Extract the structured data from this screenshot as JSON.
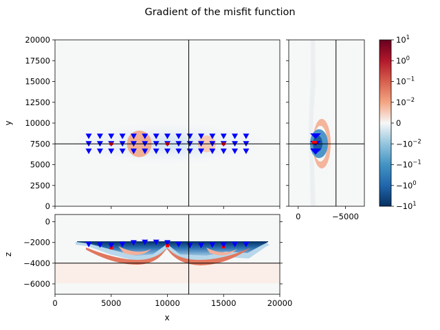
{
  "figure": {
    "title": "Gradient of the misfit function"
  },
  "chart_data": [
    {
      "panel": "xy-slice",
      "type": "heatmap",
      "xlim": [
        0,
        20000
      ],
      "ylim": [
        0,
        20000
      ],
      "ylabel": "y",
      "yticks": [
        0,
        2500,
        5000,
        7500,
        10000,
        12500,
        15000,
        17500,
        20000
      ],
      "ytick_labels": [
        "0",
        "2500",
        "5000",
        "7500",
        "10000",
        "12500",
        "15000",
        "17500",
        "20000"
      ],
      "crosshair": {
        "x": 11900,
        "y": 7500
      },
      "receiver_rows_y": [
        8400,
        7500,
        6600
      ],
      "receiver_x": [
        3000,
        4000,
        5000,
        6000,
        7000,
        8000,
        9000,
        10000,
        11000,
        12000,
        13000,
        14000,
        15000,
        16000,
        17000
      ],
      "sources": [
        {
          "x": 5000,
          "y": 7500
        },
        {
          "x": 10000,
          "y": 7500
        },
        {
          "x": 15000,
          "y": 7500
        }
      ],
      "positive_blobs": [
        {
          "x": 7500,
          "y": 7500,
          "rx": 1100,
          "ry": 1600,
          "color": "#f2a788"
        },
        {
          "x": 13500,
          "y": 7500,
          "rx": 800,
          "ry": 1000,
          "color": "#f7c6ae"
        }
      ]
    },
    {
      "panel": "zy-slice",
      "type": "heatmap",
      "xlim": [
        1000,
        -7000
      ],
      "ylim": [
        0,
        20000
      ],
      "xticks": [
        0,
        -5000
      ],
      "xtick_labels": [
        "0",
        "−5000"
      ],
      "crosshair": {
        "z": -4000,
        "y": 7500
      }
    },
    {
      "panel": "xz-slice",
      "type": "heatmap",
      "xlim": [
        0,
        20000
      ],
      "ylim": [
        -7000,
        700
      ],
      "xlabel": "x",
      "ylabel": "z",
      "xticks": [
        0,
        5000,
        10000,
        15000,
        20000
      ],
      "xtick_labels": [
        "0",
        "5000",
        "10000",
        "15000",
        "20000"
      ],
      "yticks": [
        0,
        -2000,
        -4000,
        -6000
      ],
      "ytick_labels": [
        "0",
        "−2000",
        "−4000",
        "−6000"
      ],
      "crosshair": {
        "x": 11900,
        "z": -4000
      },
      "receivers": [
        {
          "x": 3000,
          "z": -2200
        },
        {
          "x": 4000,
          "z": -2250
        },
        {
          "x": 5000,
          "z": -2300
        },
        {
          "x": 6000,
          "z": -2200
        },
        {
          "x": 7000,
          "z": -2050
        },
        {
          "x": 8000,
          "z": -2000
        },
        {
          "x": 9000,
          "z": -2000
        },
        {
          "x": 10000,
          "z": -2050
        },
        {
          "x": 11000,
          "z": -2200
        },
        {
          "x": 12000,
          "z": -2300
        },
        {
          "x": 13000,
          "z": -2300
        },
        {
          "x": 14000,
          "z": -2250
        },
        {
          "x": 15000,
          "z": -2250
        },
        {
          "x": 16000,
          "z": -2200
        },
        {
          "x": 17000,
          "z": -2200
        }
      ],
      "sources": [
        {
          "x": 5000,
          "z": -2500
        },
        {
          "x": 10000,
          "z": -2300
        },
        {
          "x": 15000,
          "z": -2400
        }
      ]
    },
    {
      "panel": "colorbar",
      "type": "colorbar",
      "scale": "symlog",
      "range": [
        -10,
        10
      ],
      "ticks": [
        10,
        1,
        0.1,
        0.01,
        0,
        -0.01,
        -0.1,
        -1,
        -10
      ],
      "tick_labels": [
        {
          "base": "10",
          "exp": "1"
        },
        {
          "base": "10",
          "exp": "0"
        },
        {
          "base": "10",
          "exp": "−1"
        },
        {
          "base": "10",
          "exp": "−2"
        },
        {
          "base": "0",
          "exp": ""
        },
        {
          "base": "−10",
          "exp": "−2"
        },
        {
          "base": "−10",
          "exp": "−1"
        },
        {
          "base": "−10",
          "exp": "0"
        },
        {
          "base": "−10",
          "exp": "1"
        }
      ],
      "colormap": "RdBu_r",
      "colors_top_to_bottom": [
        "#67001f",
        "#b2182b",
        "#d6604d",
        "#f4a582",
        "#f7f7f7",
        "#92c5de",
        "#4393c3",
        "#2166ac",
        "#053061"
      ]
    }
  ]
}
